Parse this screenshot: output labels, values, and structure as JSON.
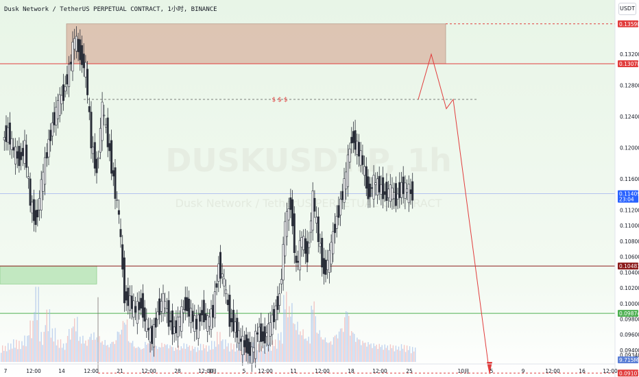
{
  "header": {
    "title": "Dusk Network / TetherUS PERPETUAL CONTRACT, 1小时, BINANCE",
    "currency": "USDT"
  },
  "watermark": {
    "symbol": "DUSKUSDT.P, 1h",
    "name": "Dusk Network / TetherUS PERPETUAL CONTRACT"
  },
  "colors": {
    "up": "#2b2f33",
    "down": "#5a5f66",
    "resistance": "#e13c3c",
    "support": "#4caf50",
    "last": "#2962ff",
    "zone_supply": "#d8b4a2",
    "zone_demand": "#b9e4b8",
    "background_top": "#e8f5e7",
    "background_bottom": "#ffffff"
  },
  "chart_data": {
    "type": "candlestick",
    "y_range": [
      0.0925,
      0.1372
    ],
    "y_ticks": [
      "0.13200",
      "0.12800",
      "0.12400",
      "0.12000",
      "0.11600",
      "0.11200",
      "0.11000",
      "0.10800",
      "0.10600",
      "0.10400",
      "0.10200",
      "0.10000",
      "0.09800",
      "0.09600",
      "0.09400",
      "0.09340"
    ],
    "x_ticks": [
      "7",
      "12:00",
      "14",
      "12:00",
      "21",
      "12:00",
      "28",
      "12:00",
      "9月",
      "5",
      "12:00",
      "11",
      "12:00",
      "18",
      "12:00",
      "25",
      "10月",
      "5",
      "9",
      "12:00",
      "16",
      "12:00"
    ],
    "price_labels": [
      {
        "label": "0.13590",
        "value": 0.1359,
        "role": "resistance"
      },
      {
        "label": "0.13078",
        "value": 0.13078,
        "role": "resistance"
      },
      {
        "label": "0.11409",
        "value": 0.11409,
        "role": "last",
        "timer": "23:04"
      },
      {
        "label": "0.10481",
        "value": 0.10481,
        "role": "level"
      },
      {
        "label": "0.09874",
        "value": 0.09874,
        "role": "support"
      },
      {
        "label": "0.09107",
        "value": 0.09107,
        "role": "resistance"
      }
    ],
    "volume_label": "9.715M",
    "liquidity_label": "$ $ $",
    "liquidity_level": 0.1262,
    "projection_path": [
      [
        0.1262,
        0
      ],
      [
        0.132,
        1
      ],
      [
        0.125,
        2
      ],
      [
        0.1262,
        3
      ],
      [
        0.091,
        4
      ]
    ],
    "price_path": [
      0.121,
      0.122,
      0.1195,
      0.1185,
      0.12,
      0.113,
      0.1105,
      0.115,
      0.1195,
      0.123,
      0.1255,
      0.127,
      0.13,
      0.134,
      0.132,
      0.13,
      0.1205,
      0.117,
      0.125,
      0.121,
      0.116,
      0.111,
      0.101,
      0.1002,
      0.099,
      0.1,
      0.097,
      0.0955,
      0.099,
      0.1005,
      0.098,
      0.0965,
      0.098,
      0.1,
      0.0985,
      0.097,
      0.099,
      0.0975,
      0.099,
      0.105,
      0.1025,
      0.098,
      0.097,
      0.095,
      0.0945,
      0.0935,
      0.0965,
      0.0955,
      0.0965,
      0.0985,
      0.101,
      0.11,
      0.113,
      0.1045,
      0.1085,
      0.106,
      0.1135,
      0.1085,
      0.104,
      0.106,
      0.11,
      0.113,
      0.1165,
      0.1215,
      0.12,
      0.118,
      0.114,
      0.1155,
      0.115,
      0.114,
      0.1145,
      0.1135,
      0.115,
      0.1145,
      0.1141
    ],
    "volume_path": [
      0.22,
      0.25,
      0.3,
      0.28,
      0.35,
      0.55,
      1.0,
      0.4,
      0.7,
      0.45,
      0.3,
      0.25,
      0.45,
      0.6,
      0.35,
      0.3,
      0.4,
      0.35,
      0.3,
      0.25,
      0.3,
      0.45,
      0.6,
      0.3,
      0.22,
      0.2,
      0.28,
      0.25,
      0.22,
      0.26,
      0.24,
      0.2,
      0.22,
      0.25,
      0.22,
      0.2,
      0.24,
      0.22,
      0.28,
      0.4,
      0.3,
      0.25,
      0.24,
      0.28,
      0.3,
      0.26,
      0.24,
      0.22,
      0.26,
      0.3,
      0.4,
      0.95,
      0.8,
      0.55,
      0.45,
      0.35,
      0.85,
      0.45,
      0.35,
      0.3,
      0.4,
      0.5,
      0.75,
      0.45,
      0.35,
      0.3,
      0.28,
      0.26,
      0.25,
      0.24,
      0.24,
      0.22,
      0.24,
      0.22,
      0.2
    ]
  }
}
